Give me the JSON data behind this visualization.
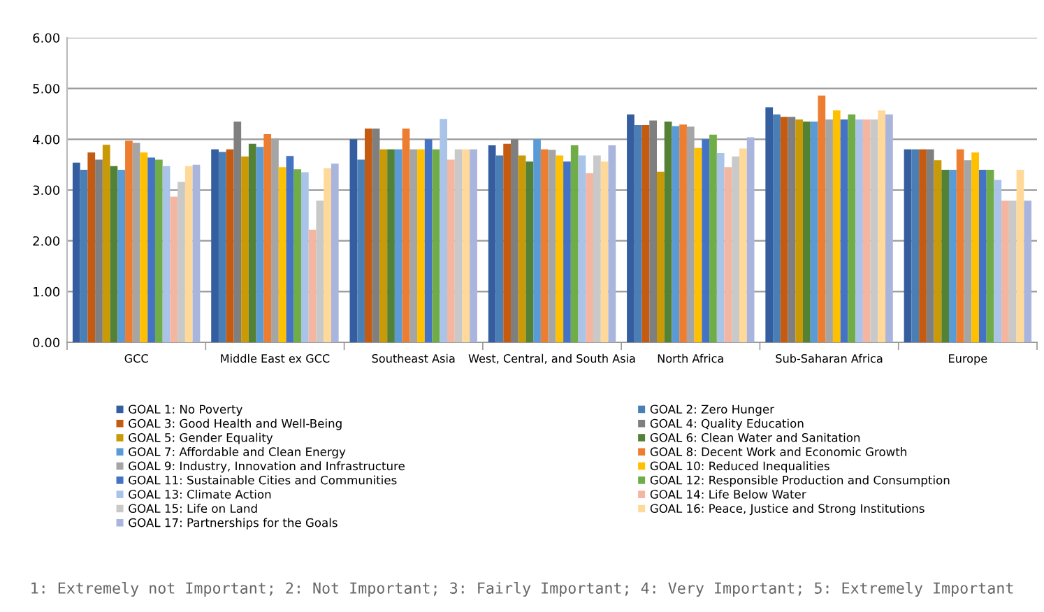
{
  "chart_data": {
    "type": "bar",
    "categories": [
      "GCC",
      "Middle East ex GCC",
      "Southeast Asia",
      "West, Central, and South Asia",
      "North Africa",
      "Sub-Saharan Africa",
      "Europe"
    ],
    "series": [
      {
        "name": "GOAL 1: No Poverty",
        "color": "#355ea0",
        "values": [
          3.54,
          3.8,
          4.0,
          3.88,
          4.49,
          4.63,
          3.8
        ]
      },
      {
        "name": "GOAL 2: Zero Hunger",
        "color": "#4a7fb5",
        "values": [
          3.4,
          3.75,
          3.6,
          3.68,
          4.28,
          4.49,
          3.8
        ]
      },
      {
        "name": "GOAL 3: Good Health and Well-Being",
        "color": "#c55a11",
        "values": [
          3.74,
          3.8,
          4.21,
          3.91,
          4.28,
          4.44,
          3.8
        ]
      },
      {
        "name": "GOAL 4: Quality Education",
        "color": "#7f7f7f",
        "values": [
          3.6,
          4.35,
          4.21,
          4.0,
          4.37,
          4.44,
          3.8
        ]
      },
      {
        "name": "GOAL 5: Gender Equality",
        "color": "#c99a06",
        "values": [
          3.89,
          3.66,
          3.8,
          3.68,
          3.36,
          4.39,
          3.59
        ]
      },
      {
        "name": "GOAL 6: Clean Water and Sanitation",
        "color": "#538135",
        "values": [
          3.47,
          3.91,
          3.8,
          3.56,
          4.35,
          4.35,
          3.4
        ]
      },
      {
        "name": "GOAL 7: Affordable and Clean Energy",
        "color": "#5b9bd5",
        "values": [
          3.4,
          3.85,
          3.8,
          4.0,
          4.26,
          4.35,
          3.4
        ]
      },
      {
        "name": "GOAL 8: Decent Work and Economic Growth",
        "color": "#ed7d31",
        "values": [
          3.97,
          4.1,
          4.21,
          3.8,
          4.29,
          4.86,
          3.8
        ]
      },
      {
        "name": "GOAL 9: Industry, Innovation and Infrastructure",
        "color": "#a5a5a5",
        "values": [
          3.93,
          4.02,
          3.8,
          3.79,
          4.25,
          4.39,
          3.59
        ]
      },
      {
        "name": "GOAL 10: Reduced Inequalities",
        "color": "#ffc000",
        "values": [
          3.74,
          3.45,
          3.8,
          3.68,
          3.83,
          4.57,
          3.74
        ]
      },
      {
        "name": "GOAL 11: Sustainable Cities and Communities",
        "color": "#4472c4",
        "values": [
          3.64,
          3.67,
          4.0,
          3.56,
          4.0,
          4.39,
          3.4
        ]
      },
      {
        "name": "GOAL 12: Responsible Production and Consumption",
        "color": "#70ad47",
        "values": [
          3.6,
          3.41,
          3.8,
          3.88,
          4.09,
          4.49,
          3.4
        ]
      },
      {
        "name": "GOAL 13: Climate Action",
        "color": "#a9c4e8",
        "values": [
          3.47,
          3.35,
          4.4,
          3.68,
          3.73,
          4.39,
          3.2
        ]
      },
      {
        "name": "GOAL 14: Life Below Water",
        "color": "#f4b6a0",
        "values": [
          2.87,
          2.22,
          3.6,
          3.33,
          3.45,
          4.39,
          2.79
        ]
      },
      {
        "name": "GOAL 15: Life on Land",
        "color": "#c9c9c9",
        "values": [
          3.16,
          2.79,
          3.8,
          3.68,
          3.66,
          4.39,
          2.79
        ]
      },
      {
        "name": "GOAL 16: Peace, Justice and Strong Institutions",
        "color": "#ffd99a",
        "values": [
          3.47,
          3.43,
          3.8,
          3.56,
          3.82,
          4.57,
          3.4
        ]
      },
      {
        "name": "GOAL 17: Partnerships for the Goals",
        "color": "#a9b5dc",
        "values": [
          3.5,
          3.52,
          3.8,
          3.88,
          4.04,
          4.49,
          2.79
        ]
      }
    ],
    "ylim": [
      0,
      6
    ],
    "yticks": [
      {
        "value": 0,
        "label": "0.00"
      },
      {
        "value": 1,
        "label": "1.00"
      },
      {
        "value": 2,
        "label": "2.00"
      },
      {
        "value": 3,
        "label": "3.00"
      },
      {
        "value": 4,
        "label": "4.00"
      },
      {
        "value": 5,
        "label": "5.00"
      },
      {
        "value": 6,
        "label": "6.00"
      }
    ],
    "grid": "y",
    "legend": "bottom",
    "annotations": [
      "1: Extremely not Important; 2: Not Important; 3: Fairly Important; 4: Very Important; 5: Extremely Important"
    ]
  }
}
